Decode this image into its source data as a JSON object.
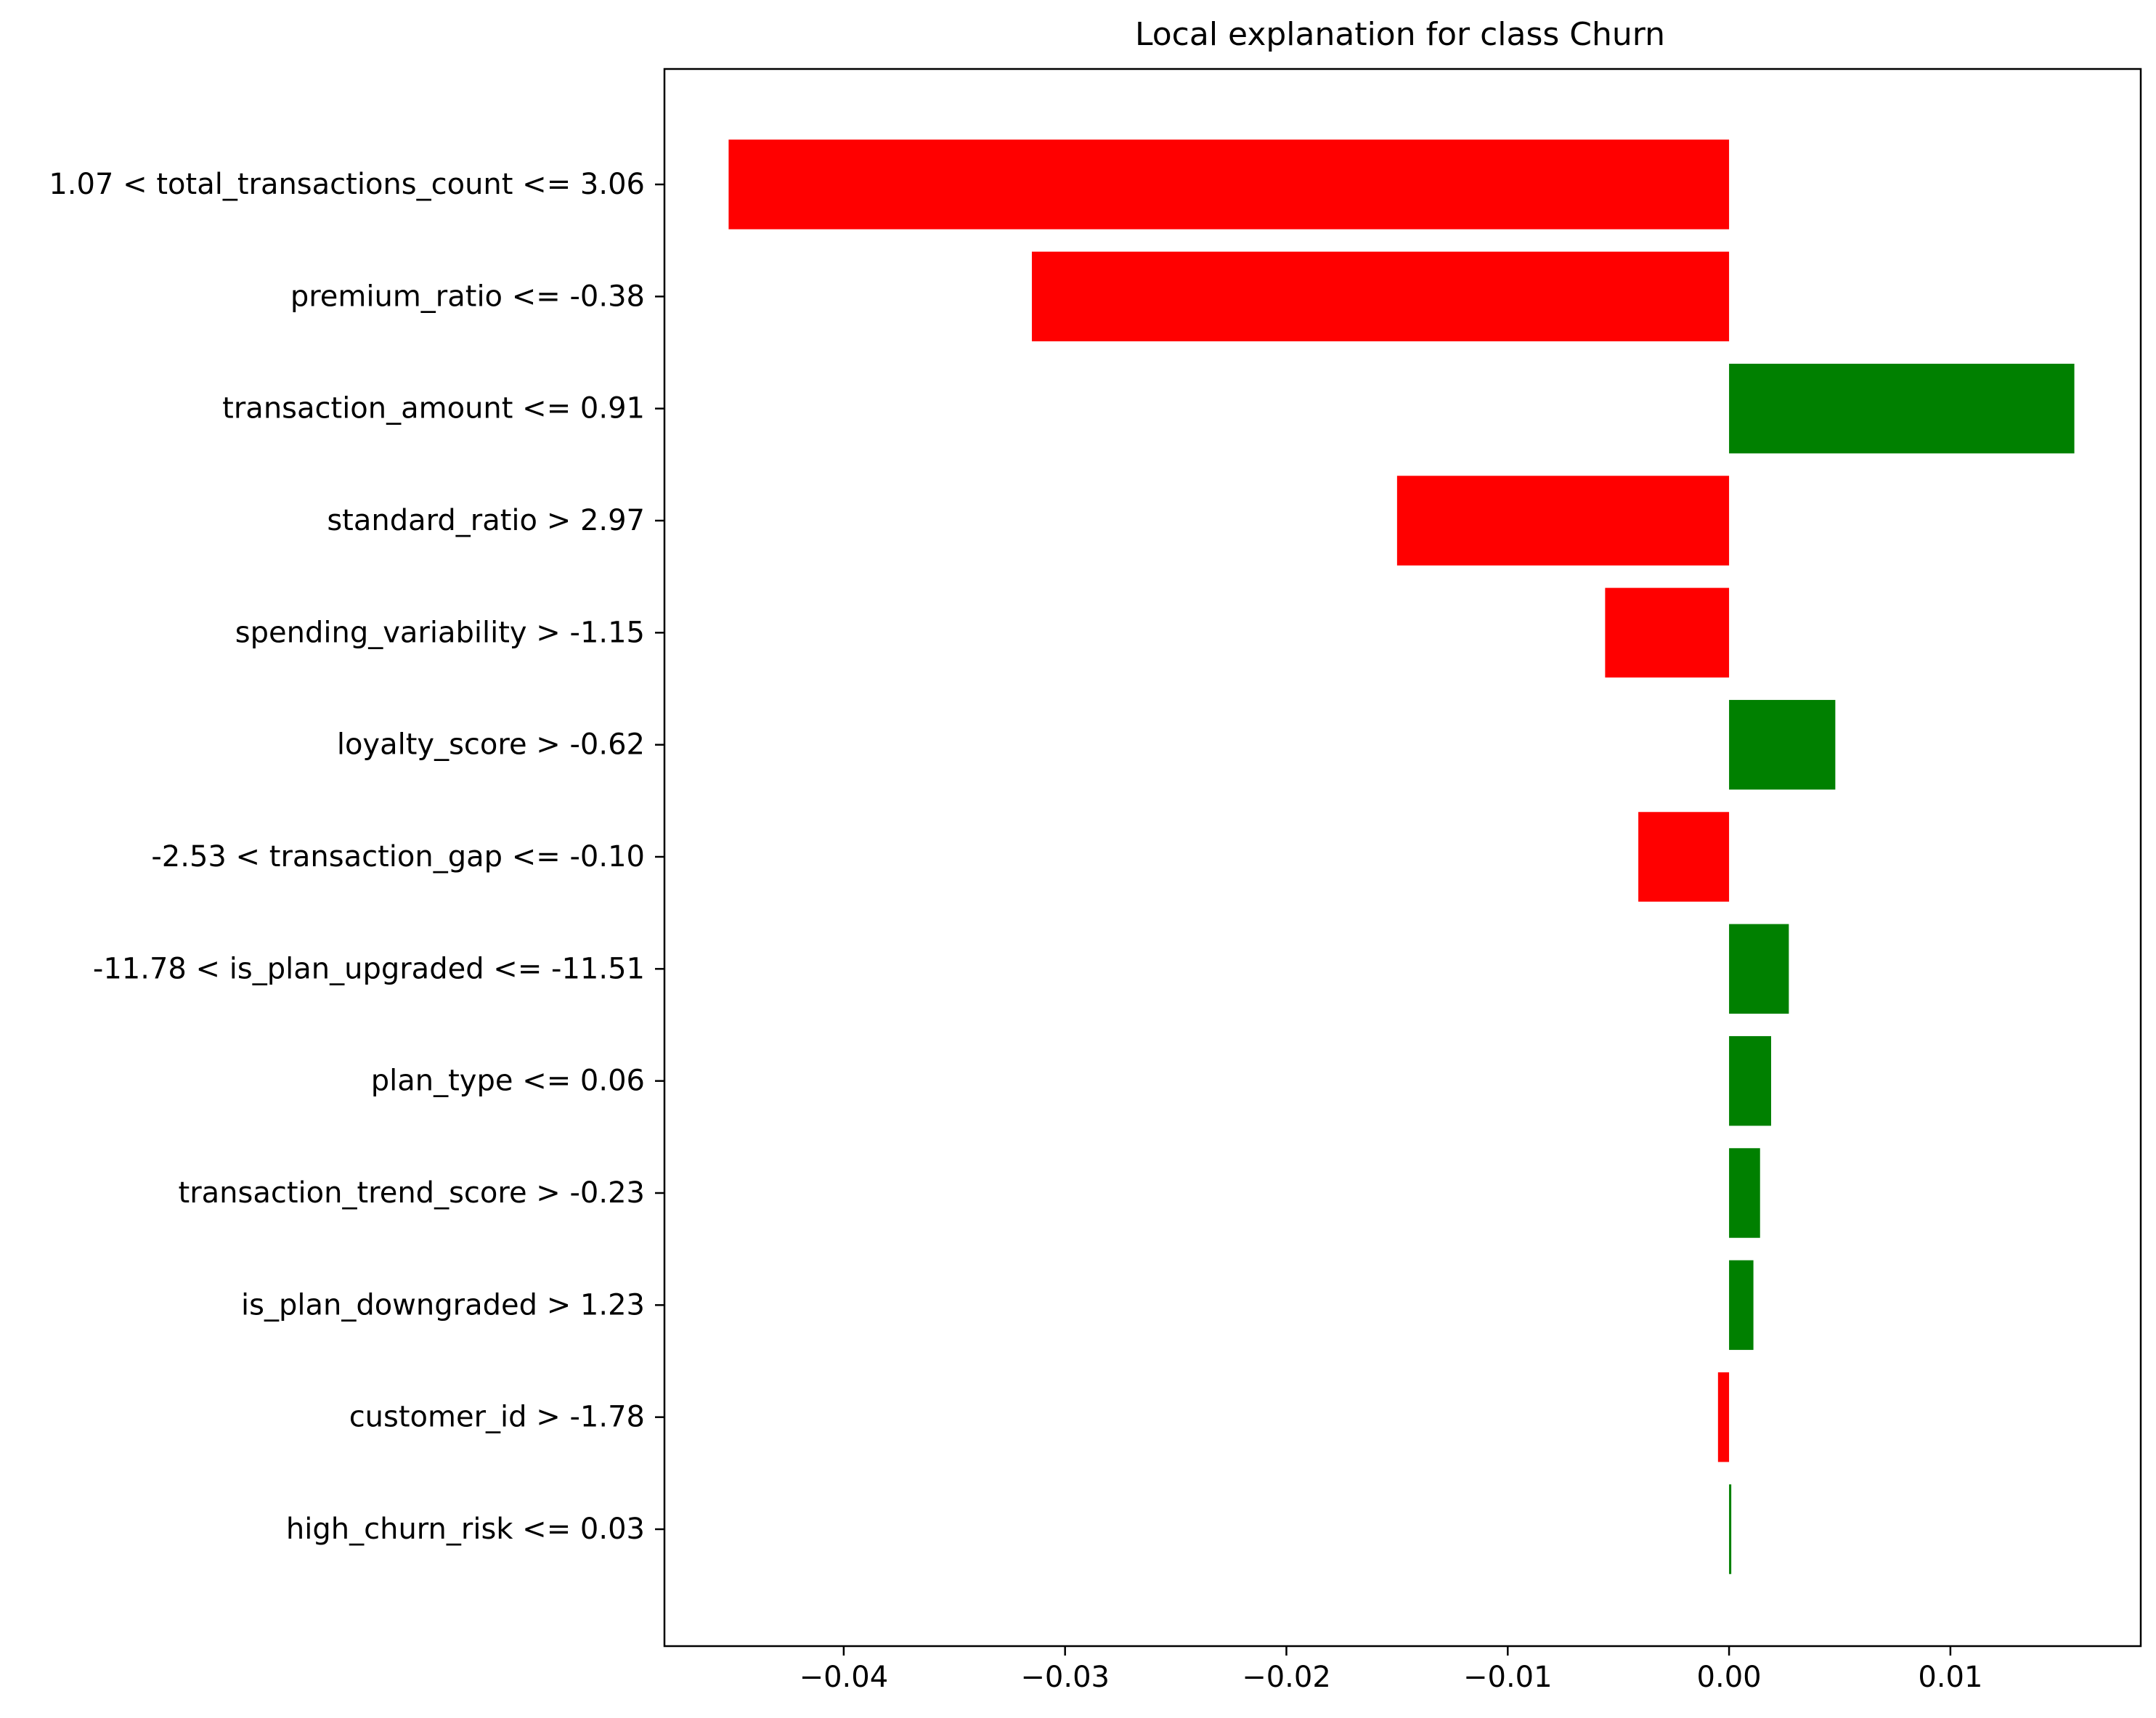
{
  "chart_data": {
    "type": "bar",
    "orientation": "horizontal",
    "title": "Local explanation for class Churn",
    "xlabel": "",
    "ylabel": "",
    "xlim": [
      -0.0481,
      0.0186
    ],
    "grid": false,
    "legend": "none",
    "categories": [
      "1.07 < total_transactions_count <= 3.06",
      "premium_ratio <= -0.38",
      "transaction_amount <= 0.91",
      "standard_ratio > 2.97",
      "spending_variability > -1.15",
      "loyalty_score > -0.62",
      "-2.53 < transaction_gap <= -0.10",
      "-11.78 < is_plan_upgraded <= -11.51",
      "plan_type <= 0.06",
      "transaction_trend_score > -0.23",
      "is_plan_downgraded > 1.23",
      "customer_id > -1.78",
      "high_churn_risk <= 0.03"
    ],
    "values": [
      -0.0452,
      -0.0315,
      0.0156,
      -0.015,
      -0.0056,
      0.0048,
      -0.0041,
      0.0027,
      0.0019,
      0.0014,
      0.0011,
      -0.0005,
      0.0001
    ],
    "x_ticks": [
      -0.04,
      -0.03,
      -0.02,
      -0.01,
      0.0,
      0.01
    ],
    "x_tick_labels": [
      "−0.04",
      "−0.03",
      "−0.02",
      "−0.01",
      "0.00",
      "0.01"
    ],
    "colors": {
      "positive": "#008000",
      "negative": "#ff0000",
      "axes": "#000000",
      "background": "#ffffff"
    }
  }
}
